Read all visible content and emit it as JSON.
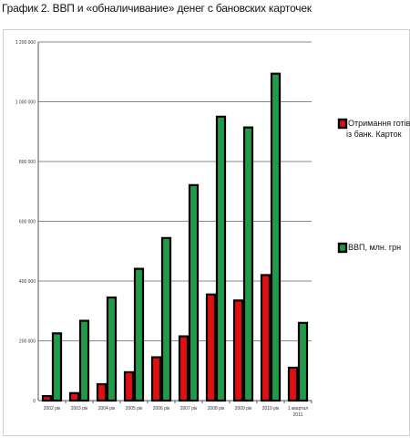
{
  "title": "График 2. ВВП и «обналичивание» денег с бановских карточек",
  "colors": {
    "cash": "#e01010",
    "gdp": "#1f9b4a",
    "outline": "#000000",
    "grid": "#888888"
  },
  "chart_data": {
    "type": "bar",
    "title": "",
    "xlabel": "",
    "ylabel": "",
    "ylim": [
      0,
      1200000
    ],
    "yticks": [
      "0",
      "200 000",
      "400 000",
      "600 000",
      "800 000",
      "1 000 000",
      "1 200 000"
    ],
    "grid": true,
    "legend_position": "right",
    "categories": [
      "2002 рік",
      "2003 рік",
      "2004 рік",
      "2005 рік",
      "2006 рік",
      "2007 рік",
      "2008 рік",
      "2009 рік",
      "2010 рік",
      "1 квартал 2011"
    ],
    "series": [
      {
        "name": "Отримання готівки із банк. Карток",
        "legend_lines": [
          "Отримання готів",
          "із банк. Карток"
        ],
        "color": "#e01010",
        "values": [
          15000,
          25000,
          55000,
          95000,
          145000,
          215000,
          355000,
          335000,
          420000,
          110000
        ]
      },
      {
        "name": "ВВП, млн. грн",
        "legend_lines": [
          "ВВП, млн. грн"
        ],
        "color": "#1f9b4a",
        "values": [
          225000,
          267000,
          345000,
          441000,
          544000,
          721000,
          950000,
          914000,
          1094000,
          260000
        ]
      }
    ]
  }
}
